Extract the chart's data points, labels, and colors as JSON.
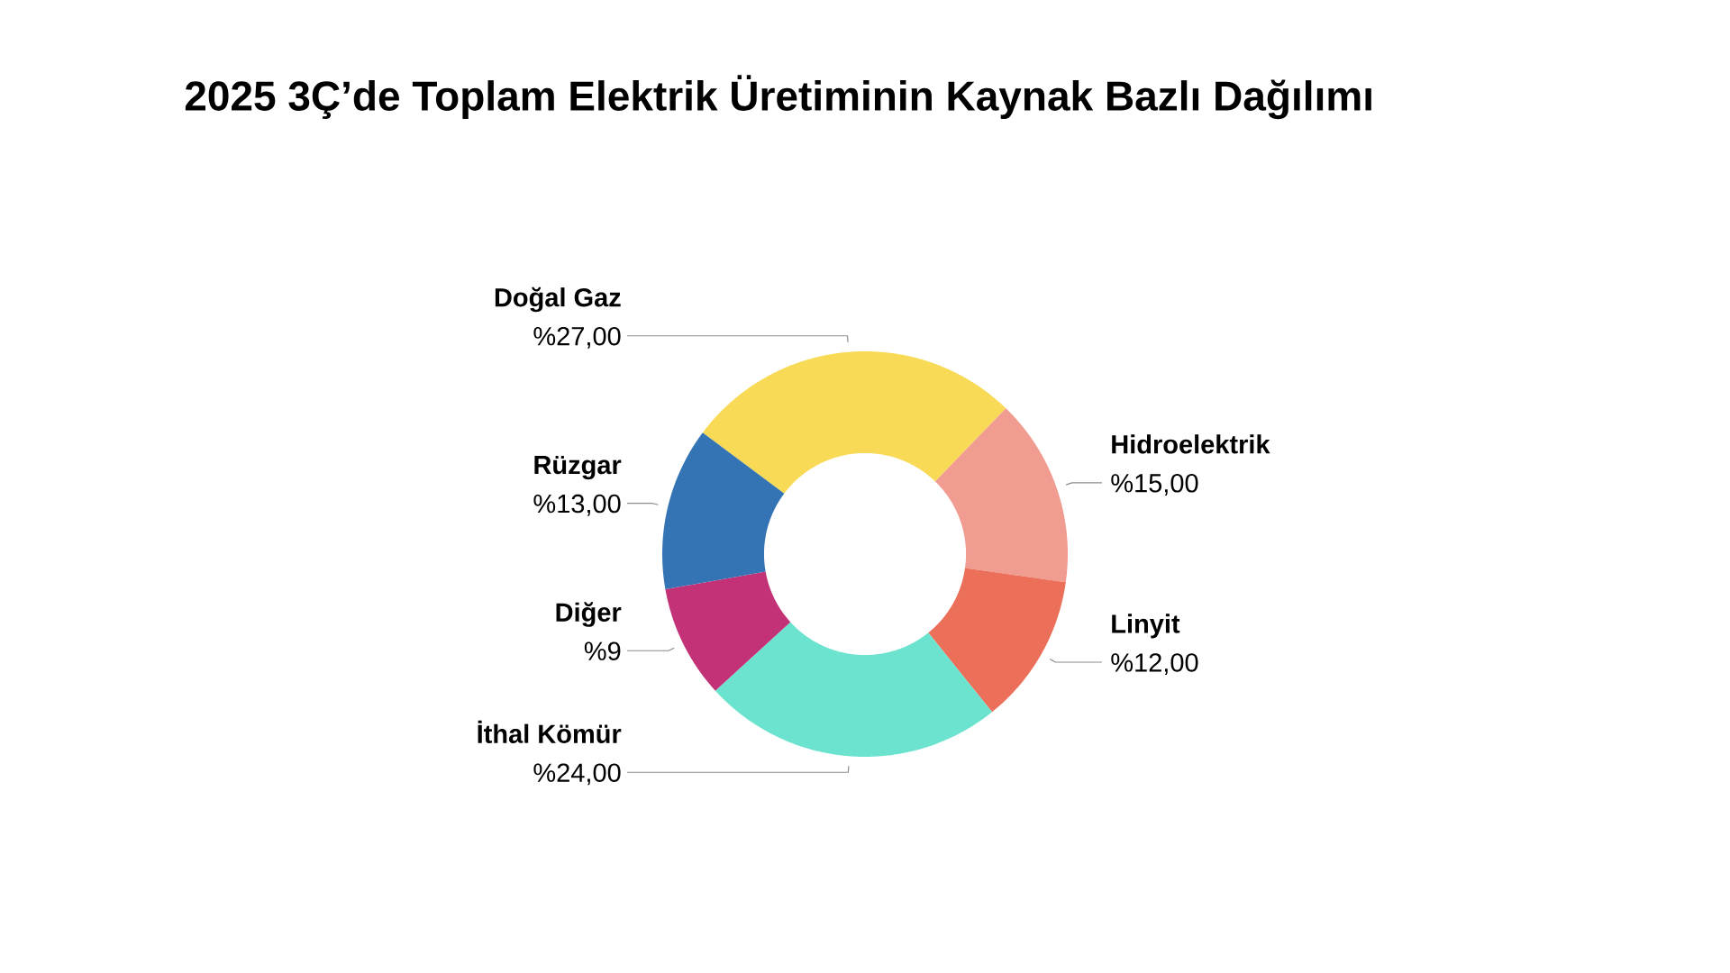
{
  "chart_data": {
    "type": "donut",
    "title": "2025 3Ç’de Toplam Elektrik Üretiminin Kaynak Bazlı Dağılımı",
    "categories": [
      "Doğal Gaz",
      "Hidroelektrik",
      "Linyit",
      "İthal Kömür",
      "Diğer",
      "Rüzgar"
    ],
    "values": [
      27,
      15,
      12,
      24,
      9,
      13
    ],
    "colors": [
      "#f9da57",
      "#f19c90",
      "#ec6f5a",
      "#6ce3cf",
      "#c33176",
      "#3474b4"
    ],
    "value_labels": [
      "%27,00",
      "%15,00",
      "%12,00",
      "%24,00",
      "%9",
      "%13,00"
    ]
  }
}
